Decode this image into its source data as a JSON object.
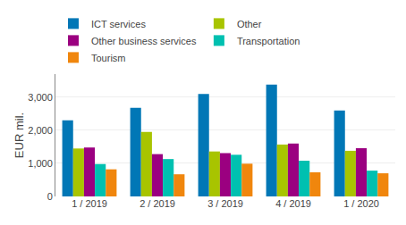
{
  "chart_data": {
    "type": "bar",
    "categories": [
      "1 / 2019",
      "2 / 2019",
      "3 / 2019",
      "4 / 2019",
      "1 / 2020"
    ],
    "series": [
      {
        "name": "ICT services",
        "color": "#0077B6",
        "values": [
          2300,
          2680,
          3100,
          3380,
          2600
        ]
      },
      {
        "name": "Other",
        "color": "#A8C400",
        "values": [
          1450,
          1950,
          1360,
          1570,
          1380
        ]
      },
      {
        "name": "Other business services",
        "color": "#9B0080",
        "values": [
          1480,
          1280,
          1310,
          1600,
          1460
        ]
      },
      {
        "name": "Transportation",
        "color": "#00C0B0",
        "values": [
          980,
          1130,
          1260,
          1080,
          780
        ]
      },
      {
        "name": "Tourism",
        "color": "#F0860D",
        "values": [
          820,
          670,
          990,
          730,
          700
        ]
      }
    ],
    "ylabel": "EUR mil.",
    "ylim": [
      0,
      3700
    ],
    "yticks": [
      0,
      {
        "value": 1000,
        "label": "1,000"
      },
      {
        "value": 2000,
        "label": "2,000"
      },
      {
        "value": 3000,
        "label": "3,000"
      }
    ],
    "grid": true,
    "legend": "top"
  }
}
